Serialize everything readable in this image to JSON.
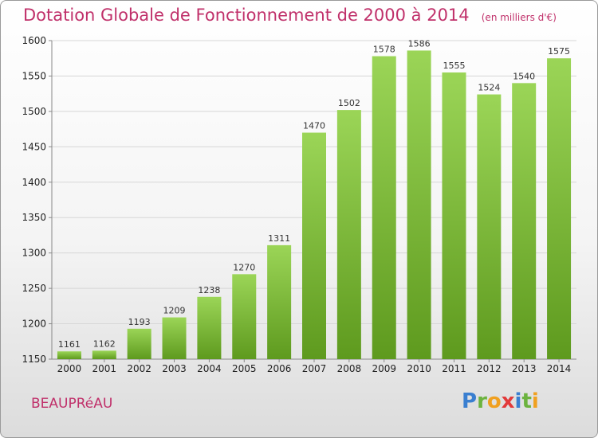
{
  "header": {
    "title": "Dotation Globale de Fonctionnement de 2000 à 2014",
    "unit": "(en milliers d'€)"
  },
  "footer": {
    "town": "BEAUPRéAU",
    "logo_letters": [
      "P",
      "r",
      "o",
      "x",
      "i",
      "t",
      "i"
    ],
    "logo_colors": [
      "#3a7fd0",
      "#6cb33f",
      "#f0a020",
      "#e23a3a",
      "#3a7fd0",
      "#6cb33f",
      "#f0a020"
    ]
  },
  "colors": {
    "bar_top": "#9bd557",
    "bar_bottom": "#5e9a1e",
    "title": "#c0306a"
  },
  "chart_data": {
    "type": "bar",
    "title": "Dotation Globale de Fonctionnement de 2000 à 2014",
    "subtitle": "(en milliers d'€)",
    "xlabel": "",
    "ylabel": "",
    "categories": [
      "2000",
      "2001",
      "2002",
      "2003",
      "2004",
      "2005",
      "2006",
      "2007",
      "2008",
      "2009",
      "2010",
      "2011",
      "2012",
      "2013",
      "2014"
    ],
    "values": [
      1161,
      1162,
      1193,
      1209,
      1238,
      1270,
      1311,
      1470,
      1502,
      1578,
      1586,
      1555,
      1524,
      1540,
      1575
    ],
    "ylim": [
      1150,
      1600
    ],
    "yticks": [
      1150,
      1200,
      1250,
      1300,
      1350,
      1400,
      1450,
      1500,
      1550,
      1600
    ],
    "grid": true
  }
}
